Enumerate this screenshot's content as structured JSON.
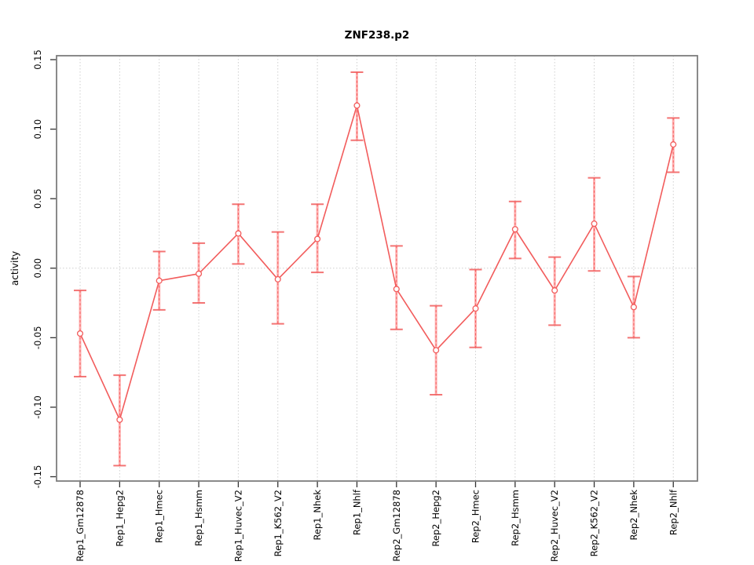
{
  "chart_data": {
    "type": "line",
    "title": "ZNF238.p2",
    "xlabel": "",
    "ylabel": "activity",
    "ylim": [
      -0.15,
      0.15
    ],
    "yticks": [
      -0.15,
      -0.1,
      -0.05,
      0.0,
      0.05,
      0.1,
      0.15
    ],
    "ytick_labels": [
      "-0.15",
      "-0.10",
      "-0.05",
      "0.00",
      "0.05",
      "0.10",
      "0.15"
    ],
    "grid": {
      "vertical_dotted_per_category": true,
      "horizontal_dotted_at_zero": true,
      "other_horizontal_gridlines": false
    },
    "legend": "none",
    "marker": "open-circle",
    "error_bars": true,
    "categories": [
      "Rep1_Gm12878",
      "Rep1_Hepg2",
      "Rep1_Hmec",
      "Rep1_Hsmm",
      "Rep1_Huvec_V2",
      "Rep1_K562_V2",
      "Rep1_Nhek",
      "Rep1_Nhlf",
      "Rep2_Gm12878",
      "Rep2_Hepg2",
      "Rep2_Hmec",
      "Rep2_Hsmm",
      "Rep2_Huvec_V2",
      "Rep2_K562_V2",
      "Rep2_Nhek",
      "Rep2_Nhlf"
    ],
    "series": [
      {
        "name": "activity",
        "values": [
          -0.047,
          -0.109,
          -0.009,
          -0.004,
          0.025,
          -0.008,
          0.021,
          0.117,
          -0.015,
          -0.059,
          -0.029,
          0.028,
          -0.016,
          0.032,
          -0.028,
          0.089
        ],
        "err_low": [
          -0.078,
          -0.142,
          -0.03,
          -0.025,
          0.003,
          -0.04,
          -0.003,
          0.092,
          -0.044,
          -0.091,
          -0.057,
          0.007,
          -0.041,
          -0.002,
          -0.05,
          0.069
        ],
        "err_high": [
          -0.016,
          -0.077,
          0.012,
          0.018,
          0.046,
          0.026,
          0.046,
          0.141,
          0.016,
          -0.027,
          -0.001,
          0.048,
          0.008,
          0.065,
          -0.006,
          0.108
        ]
      }
    ],
    "colors": {
      "line": "#f25c5c",
      "error_bar_light": "#ffb0b0",
      "error_bar_dash": "#f25c5c",
      "marker_stroke": "#f25c5c",
      "marker_fill": "#ffffff",
      "grid": "#cfcfcf",
      "box_border": "#7d7d7d",
      "tick": "#333333",
      "text": "#000000",
      "background": "#ffffff"
    }
  }
}
